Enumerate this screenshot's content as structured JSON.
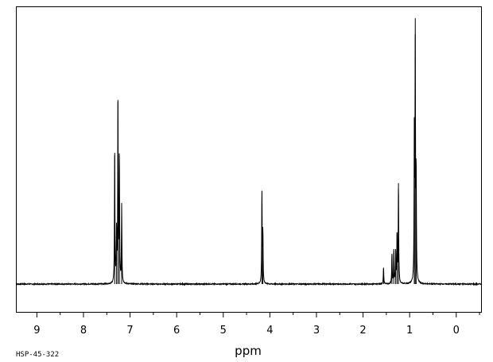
{
  "spectrum_code": "HSP-45-322",
  "chart_data": {
    "type": "line",
    "xlabel": "ppm",
    "ylabel": "",
    "title": "",
    "x_reversed": true,
    "xlim": [
      9.45,
      -0.55
    ],
    "ylim": [
      -0.1,
      1.0
    ],
    "ticks": [
      9,
      8,
      7,
      6,
      5,
      4,
      3,
      2,
      1,
      0
    ],
    "tick_labels": [
      "9",
      "8",
      "7",
      "6",
      "5",
      "4",
      "3",
      "2",
      "1",
      "0"
    ],
    "grid": false,
    "legend": "none",
    "series": [
      {
        "peaks": [
          {
            "ppm": 7.33,
            "intensity": 0.51
          },
          {
            "ppm": 7.29,
            "intensity": 0.21
          },
          {
            "ppm": 7.26,
            "intensity": 0.73
          },
          {
            "ppm": 7.23,
            "intensity": 0.51
          },
          {
            "ppm": 7.18,
            "intensity": 0.31
          },
          {
            "ppm": 4.17,
            "intensity": 0.37
          },
          {
            "ppm": 4.15,
            "intensity": 0.2
          },
          {
            "ppm": 1.56,
            "intensity": 0.065
          },
          {
            "ppm": 1.38,
            "intensity": 0.12
          },
          {
            "ppm": 1.34,
            "intensity": 0.13
          },
          {
            "ppm": 1.3,
            "intensity": 0.13
          },
          {
            "ppm": 1.27,
            "intensity": 0.2
          },
          {
            "ppm": 1.24,
            "intensity": 0.4
          },
          {
            "ppm": 0.9,
            "intensity": 0.58
          },
          {
            "ppm": 0.88,
            "intensity": 0.99
          },
          {
            "ppm": 0.86,
            "intensity": 0.43
          }
        ]
      }
    ]
  }
}
